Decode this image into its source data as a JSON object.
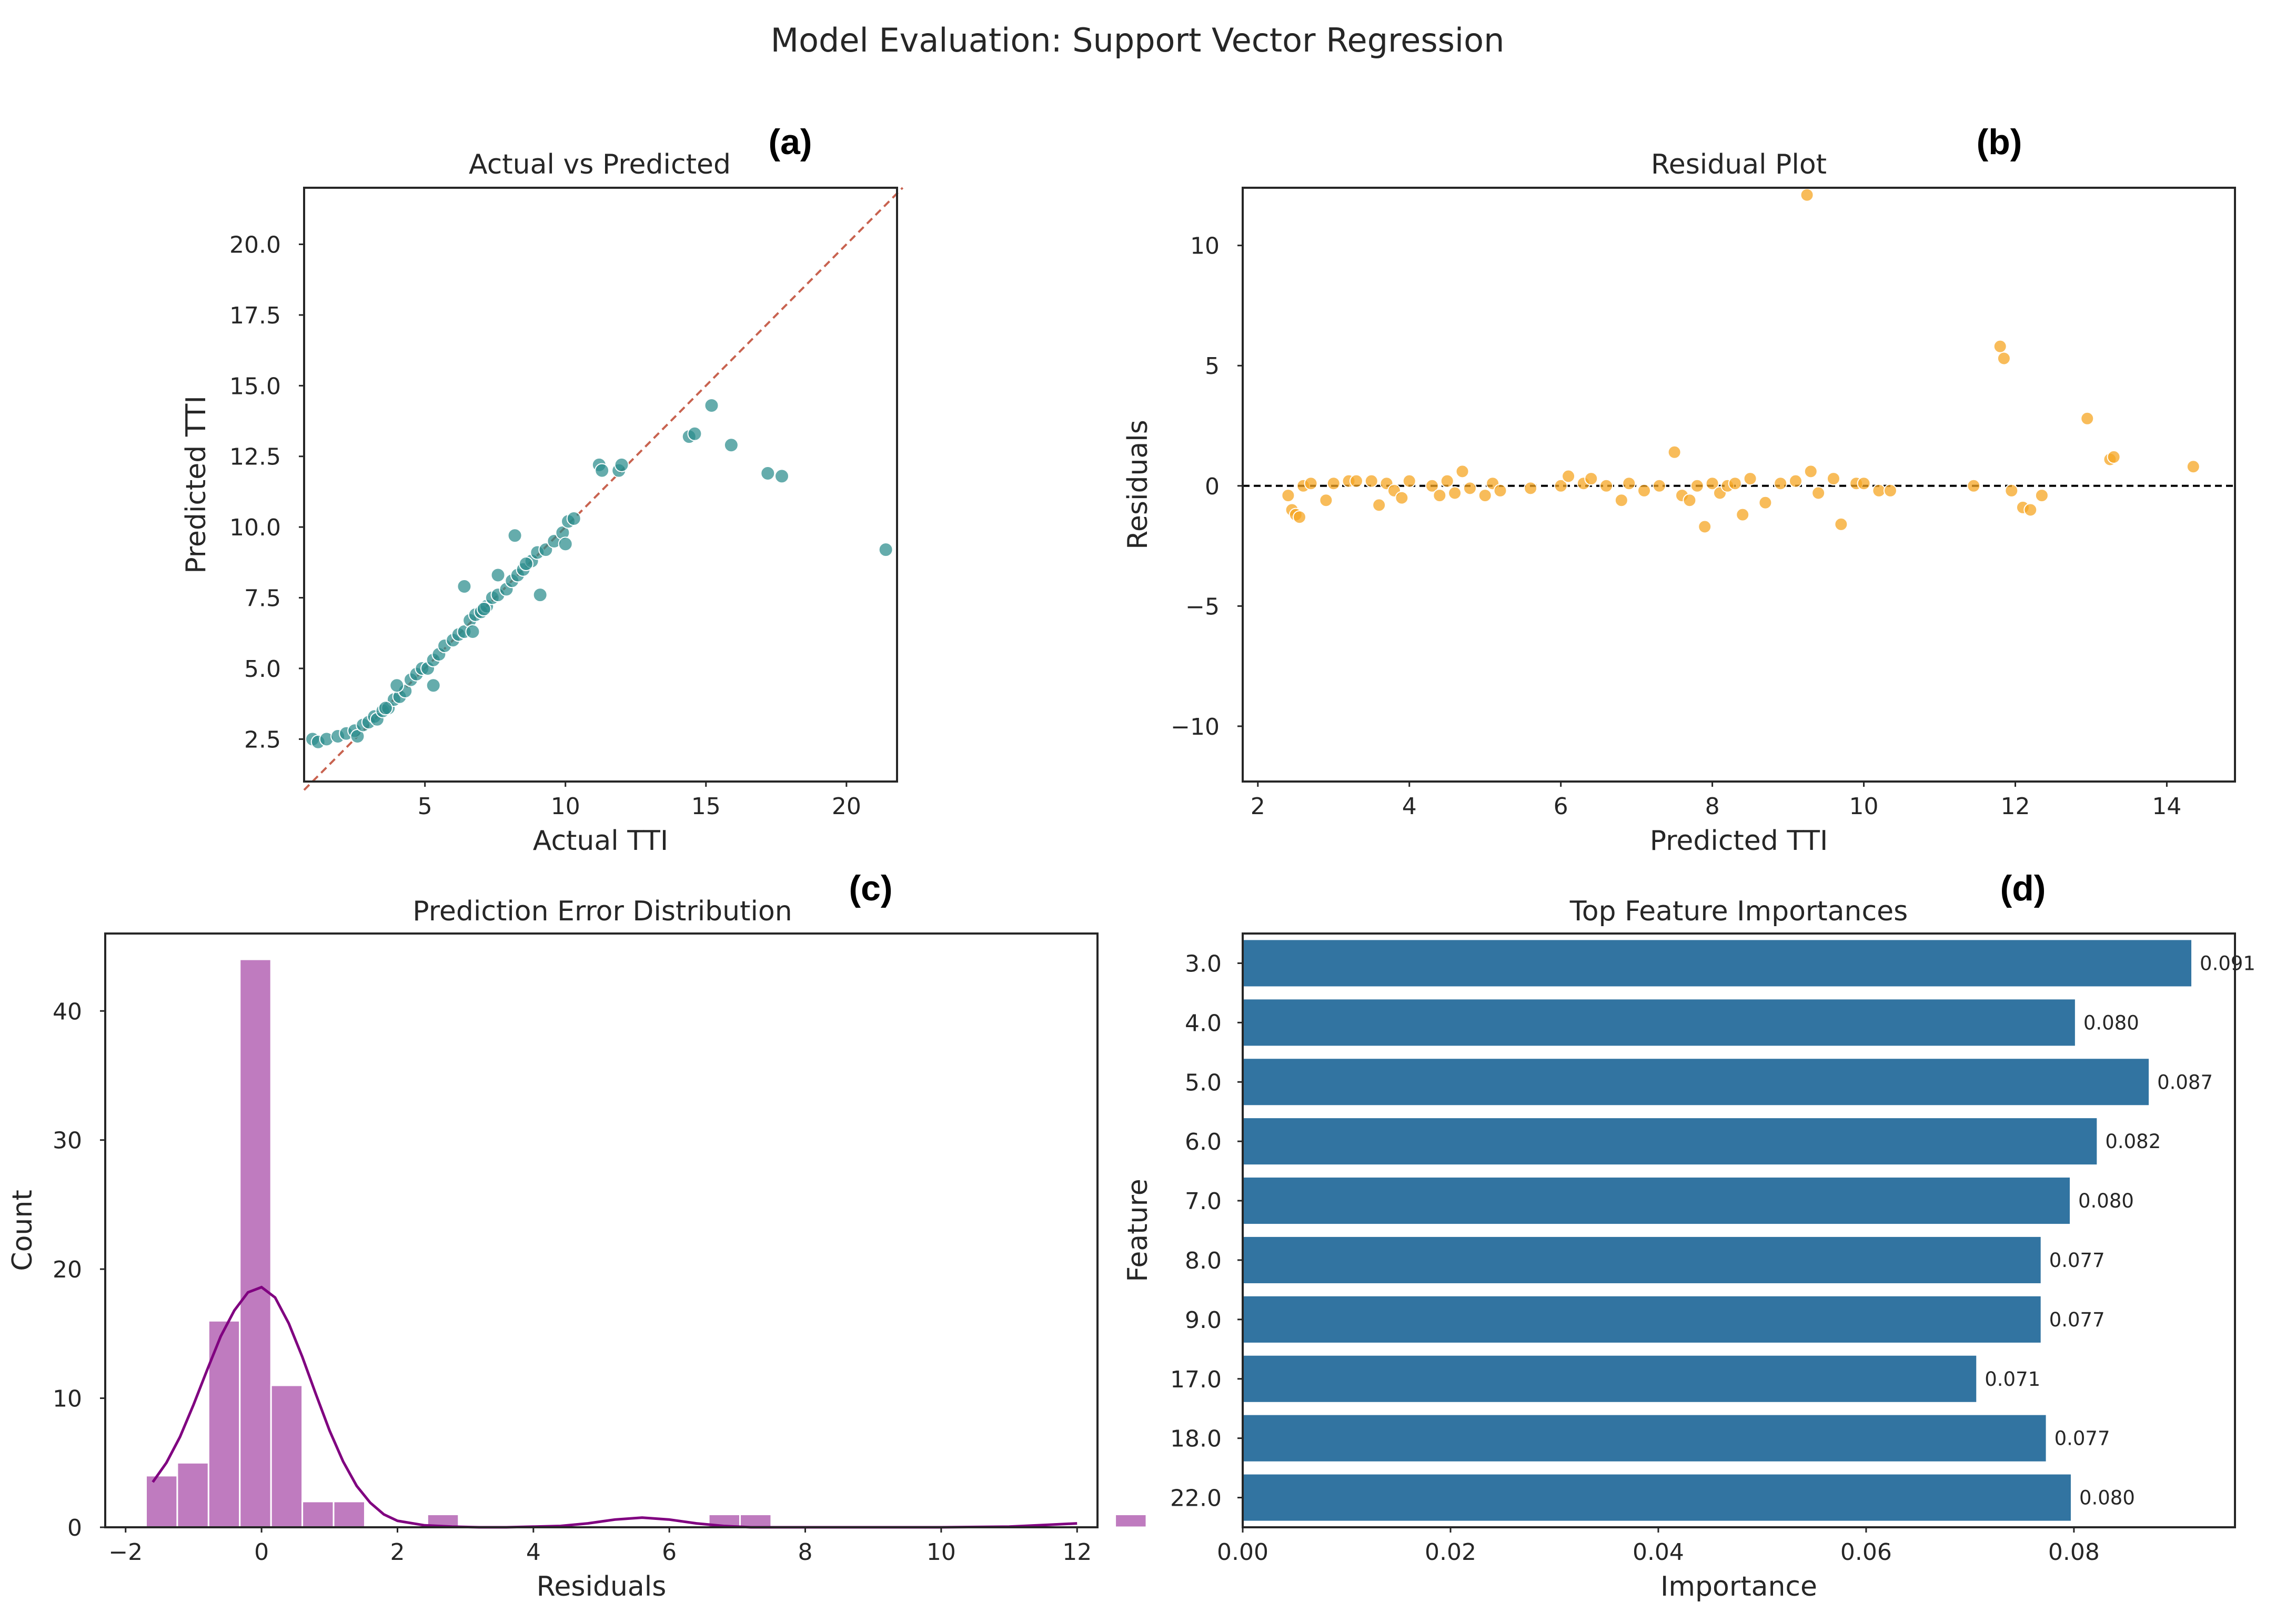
{
  "suptitle": "Model Evaluation: Support Vector Regression",
  "chart_data": [
    {
      "id": "a",
      "panel_label": "(a)",
      "type": "scatter",
      "title": "Actual vs Predicted",
      "xlabel": "Actual TTI",
      "ylabel": "Predicted TTI",
      "xlim": [
        0.7,
        21.8
      ],
      "ylim": [
        1.0,
        22.0
      ],
      "xticks": [
        5,
        10,
        15,
        20
      ],
      "xtick_labels": [
        "5",
        "10",
        "15",
        "20"
      ],
      "yticks": [
        2.5,
        5.0,
        7.5,
        10.0,
        12.5,
        15.0,
        17.5,
        20.0
      ],
      "ytick_labels": [
        "2.5",
        "5.0",
        "7.5",
        "10.0",
        "12.5",
        "15.0",
        "17.5",
        "20.0"
      ],
      "color": "#2a8c8c",
      "reference_line": {
        "from": [
          0.7,
          0.7
        ],
        "to": [
          22.0,
          22.0
        ],
        "style": "dashed",
        "color": "#c8624f"
      },
      "x": [
        1.0,
        1.2,
        1.5,
        1.9,
        2.2,
        2.5,
        2.6,
        2.8,
        3.0,
        3.2,
        3.3,
        3.5,
        3.7,
        3.9,
        4.1,
        4.3,
        4.5,
        4.7,
        4.9,
        5.1,
        5.3,
        5.5,
        5.7,
        6.0,
        6.2,
        6.4,
        6.6,
        6.8,
        7.0,
        7.2,
        7.4,
        7.6,
        7.9,
        8.1,
        8.3,
        8.5,
        8.8,
        9.0,
        9.3,
        9.6,
        9.9,
        10.1,
        10.3,
        3.6,
        4.0,
        5.3,
        6.4,
        6.7,
        7.1,
        7.6,
        8.2,
        8.6,
        9.1,
        10.0,
        11.2,
        11.3,
        11.9,
        12.0,
        14.4,
        14.6,
        15.2,
        15.9,
        17.2,
        17.7,
        21.4
      ],
      "y": [
        2.5,
        2.4,
        2.5,
        2.6,
        2.7,
        2.8,
        2.6,
        3.0,
        3.1,
        3.3,
        3.2,
        3.5,
        3.6,
        3.9,
        4.0,
        4.2,
        4.6,
        4.8,
        5.0,
        5.0,
        5.3,
        5.5,
        5.8,
        6.0,
        6.2,
        6.3,
        6.7,
        6.9,
        7.0,
        7.2,
        7.5,
        7.6,
        7.8,
        8.1,
        8.3,
        8.5,
        8.8,
        9.1,
        9.2,
        9.5,
        9.8,
        10.2,
        10.3,
        3.6,
        4.4,
        4.4,
        7.9,
        6.3,
        7.1,
        8.3,
        9.7,
        8.7,
        7.6,
        9.4,
        12.2,
        12.0,
        12.0,
        12.2,
        13.2,
        13.3,
        14.3,
        12.9,
        11.9,
        11.8,
        9.2
      ]
    },
    {
      "id": "b",
      "panel_label": "(b)",
      "type": "scatter",
      "title": "Residual Plot",
      "xlabel": "Predicted TTI",
      "ylabel": "Residuals",
      "xlim": [
        1.8,
        14.9
      ],
      "ylim": [
        -12.3,
        12.4
      ],
      "xticks": [
        2,
        4,
        6,
        8,
        10,
        12,
        14
      ],
      "xtick_labels": [
        "2",
        "4",
        "6",
        "8",
        "10",
        "12",
        "14"
      ],
      "yticks": [
        -10,
        -5,
        0,
        5,
        10
      ],
      "ytick_labels": [
        "−10",
        "−5",
        "0",
        "5",
        "10"
      ],
      "color": "#f5a623",
      "reference_line": {
        "y": 0,
        "style": "dashed",
        "color": "#000000"
      },
      "x": [
        2.4,
        2.45,
        2.5,
        2.55,
        2.6,
        2.7,
        2.9,
        3.0,
        3.2,
        3.3,
        3.5,
        3.6,
        3.7,
        3.8,
        3.9,
        4.0,
        4.3,
        4.4,
        4.5,
        4.6,
        4.7,
        4.8,
        5.0,
        5.1,
        5.2,
        5.6,
        6.0,
        6.1,
        6.3,
        6.4,
        6.6,
        6.8,
        6.9,
        7.1,
        7.3,
        7.5,
        7.6,
        7.7,
        7.8,
        7.9,
        8.0,
        8.1,
        8.2,
        8.3,
        8.4,
        8.5,
        8.7,
        8.9,
        9.1,
        9.25,
        9.3,
        9.4,
        9.6,
        9.7,
        9.9,
        10.0,
        10.2,
        10.35,
        11.45,
        11.8,
        11.85,
        11.95,
        12.1,
        12.2,
        12.35,
        12.95,
        13.25,
        13.3,
        14.35
      ],
      "y": [
        -0.4,
        -1.0,
        -1.2,
        -1.3,
        0.0,
        0.1,
        -0.6,
        0.1,
        0.2,
        0.2,
        0.2,
        -0.8,
        0.1,
        -0.2,
        -0.5,
        0.2,
        0.0,
        -0.4,
        0.2,
        -0.3,
        0.6,
        -0.1,
        -0.4,
        0.1,
        -0.2,
        -0.1,
        0.0,
        0.4,
        0.1,
        0.3,
        0.0,
        -0.6,
        0.1,
        -0.2,
        0.0,
        1.4,
        -0.4,
        -0.6,
        0.0,
        -1.7,
        0.1,
        -0.3,
        0.0,
        0.1,
        -1.2,
        0.3,
        -0.7,
        0.1,
        0.2,
        12.1,
        0.6,
        -0.3,
        0.3,
        -1.6,
        0.1,
        0.1,
        -0.2,
        -0.2,
        0.0,
        5.8,
        5.3,
        -0.2,
        -0.9,
        -1.0,
        -0.4,
        2.8,
        1.1,
        1.2,
        0.8
      ]
    },
    {
      "id": "c",
      "panel_label": "(c)",
      "type": "histogram",
      "title": "Prediction Error Distribution",
      "xlabel": "Residuals",
      "ylabel": "Count",
      "xlim": [
        -2.3,
        12.3
      ],
      "ylim": [
        0,
        46
      ],
      "xticks": [
        -2,
        0,
        2,
        4,
        6,
        8,
        10,
        12
      ],
      "xtick_labels": [
        "−2",
        "0",
        "2",
        "4",
        "6",
        "8",
        "10",
        "12"
      ],
      "yticks": [
        0,
        10,
        20,
        30,
        40
      ],
      "ytick_labels": [
        "0",
        "10",
        "20",
        "30",
        "40"
      ],
      "color": "#bf7bbf",
      "kde_color": "#800080",
      "bin_start": -1.7,
      "bin_width": 0.46,
      "counts": [
        4,
        5,
        16,
        44,
        11,
        2,
        2,
        0,
        0,
        1,
        0,
        0,
        0,
        0,
        0,
        0,
        0,
        0,
        1,
        1,
        0,
        0,
        0,
        0,
        0,
        0,
        0,
        0,
        0,
        0,
        0,
        1
      ],
      "kde_x": [
        -1.6,
        -1.4,
        -1.2,
        -1.0,
        -0.8,
        -0.6,
        -0.4,
        -0.2,
        0.0,
        0.2,
        0.4,
        0.6,
        0.8,
        1.0,
        1.2,
        1.4,
        1.6,
        1.8,
        2.0,
        2.4,
        2.8,
        3.2,
        3.6,
        4.0,
        4.4,
        4.8,
        5.2,
        5.6,
        6.0,
        6.4,
        6.8,
        7.2,
        8.0,
        9.0,
        10.0,
        11.0,
        11.6,
        12.0
      ],
      "kde_y": [
        3.5,
        5.0,
        7.0,
        9.5,
        12.2,
        14.8,
        16.8,
        18.2,
        18.6,
        17.8,
        15.8,
        13.2,
        10.3,
        7.5,
        5.1,
        3.2,
        1.9,
        1.0,
        0.5,
        0.15,
        0.05,
        0.0,
        0.0,
        0.05,
        0.1,
        0.3,
        0.6,
        0.75,
        0.6,
        0.3,
        0.1,
        0.0,
        0.0,
        0.0,
        0.0,
        0.05,
        0.2,
        0.3
      ]
    },
    {
      "id": "d",
      "panel_label": "(d)",
      "type": "bar",
      "orientation": "horizontal",
      "title": "Top Feature Importances",
      "xlabel": "Importance",
      "ylabel": "Feature",
      "xlim": [
        0.0,
        0.0955
      ],
      "xticks": [
        0.0,
        0.02,
        0.04,
        0.06,
        0.08
      ],
      "xtick_labels": [
        "0.00",
        "0.02",
        "0.04",
        "0.06",
        "0.08"
      ],
      "color": "#3274a1",
      "categories": [
        "3.0",
        "4.0",
        "5.0",
        "6.0",
        "7.0",
        "8.0",
        "9.0",
        "17.0",
        "18.0",
        "22.0"
      ],
      "values": [
        0.0913,
        0.0801,
        0.0872,
        0.0822,
        0.0796,
        0.0768,
        0.0768,
        0.0706,
        0.0773,
        0.0797
      ],
      "value_labels": [
        "0.091",
        "0.080",
        "0.087",
        "0.082",
        "0.080",
        "0.077",
        "0.077",
        "0.071",
        "0.077",
        "0.080"
      ]
    }
  ]
}
